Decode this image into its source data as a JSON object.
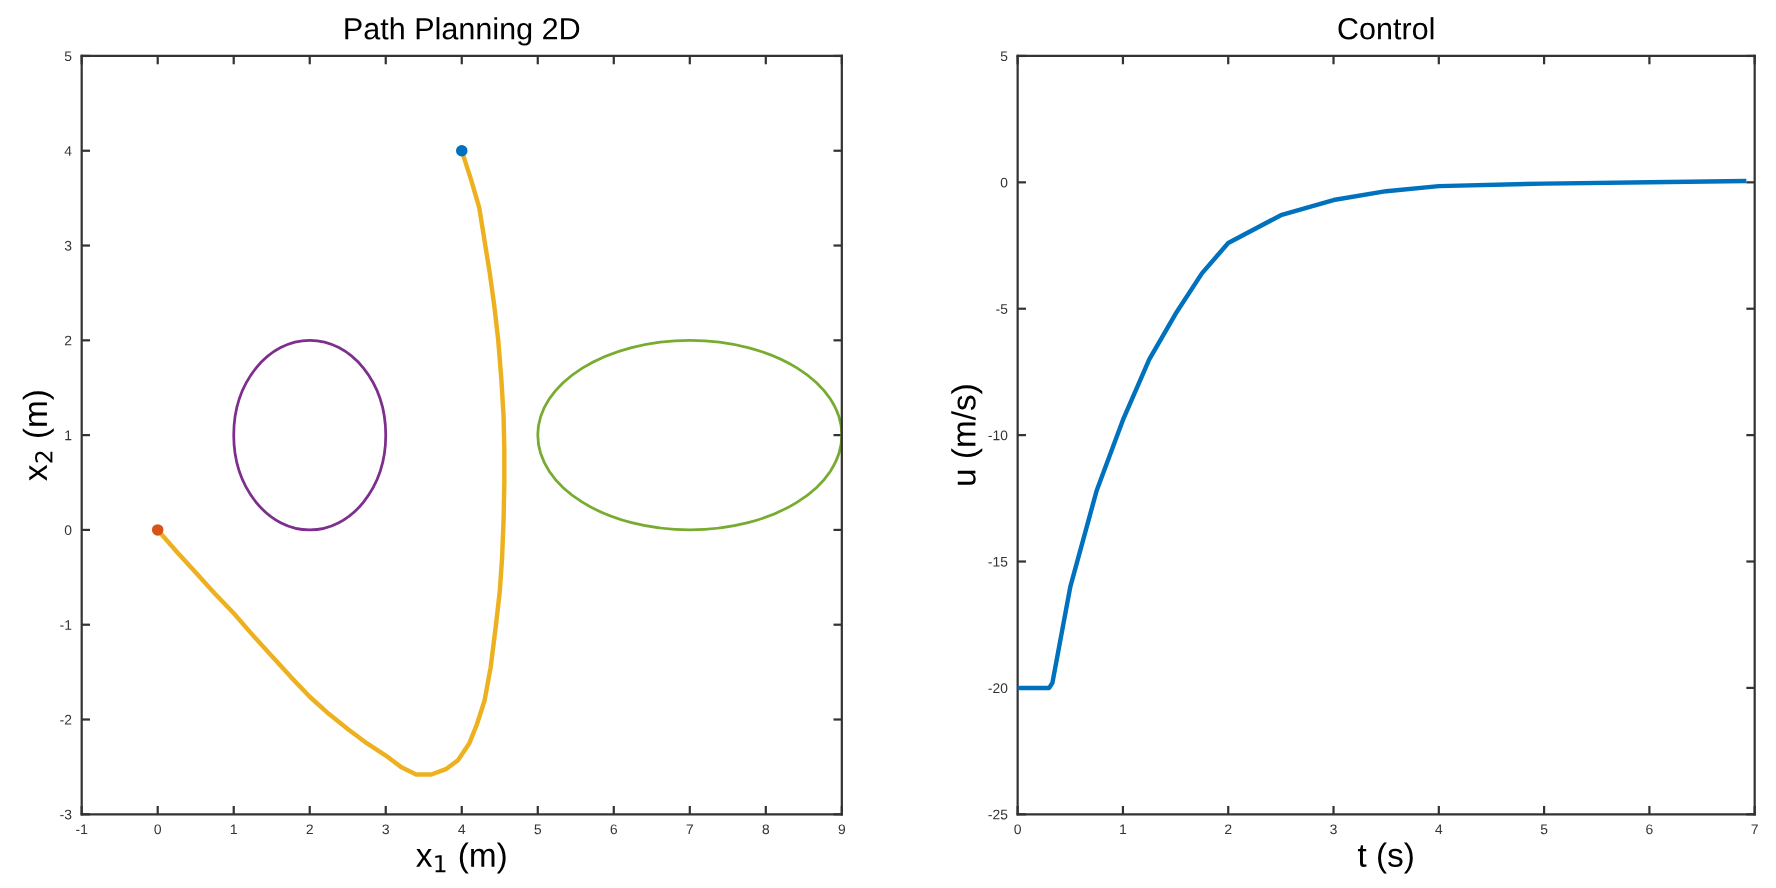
{
  "chart_data": [
    {
      "type": "line",
      "title": "Path Planning 2D",
      "xlabel": "x$_{1}$ (m)",
      "ylabel": "x$_{2}$ (m)",
      "xlim": [
        -1,
        9
      ],
      "ylim": [
        -3,
        5
      ],
      "xticks": [
        -1,
        0,
        1,
        2,
        3,
        4,
        5,
        6,
        7,
        8,
        9
      ],
      "yticks": [
        -3,
        -2,
        -1,
        0,
        1,
        2,
        3,
        4,
        5
      ],
      "grid": false,
      "series": [
        {
          "type": "line",
          "color": "#edb120",
          "x": [
            0,
            0.25,
            0.5,
            0.75,
            1,
            1.25,
            1.5,
            1.75,
            2,
            2.25,
            2.5,
            2.75,
            3,
            3.2,
            3.4,
            3.6,
            3.8,
            3.95,
            4.1,
            4.2,
            4.3,
            4.38,
            4.45,
            4.5,
            4.53,
            4.55,
            4.56,
            4.56,
            4.55,
            4.52,
            4.48,
            4.43,
            4.37,
            4.3,
            4.23,
            4.12,
            4
          ],
          "values": [
            0,
            -0.23,
            -0.45,
            -0.67,
            -0.88,
            -1.11,
            -1.33,
            -1.55,
            -1.76,
            -1.94,
            -2.1,
            -2.25,
            -2.38,
            -2.5,
            -2.58,
            -2.58,
            -2.52,
            -2.43,
            -2.25,
            -2.05,
            -1.8,
            -1.45,
            -1.0,
            -0.65,
            -0.3,
            0.1,
            0.5,
            0.85,
            1.2,
            1.6,
            2,
            2.35,
            2.7,
            3.05,
            3.4,
            3.7,
            4
          ]
        },
        {
          "type": "scatter",
          "color": "#d95319",
          "x": [
            0
          ],
          "values": [
            0
          ]
        },
        {
          "type": "scatter",
          "color": "#0072bd",
          "x": [
            4
          ],
          "values": [
            4
          ]
        }
      ]
    },
    {
      "type": "line",
      "title": "Control",
      "xlabel": "t (s)",
      "ylabel": "u (m/s)",
      "xlim": [
        0,
        7
      ],
      "ylim": [
        -25,
        5
      ],
      "xticks": [
        0,
        1,
        2,
        3,
        4,
        5,
        6,
        7
      ],
      "yticks": [
        -25,
        -20,
        -15,
        -10,
        -5,
        0,
        5
      ],
      "grid": false,
      "series": [
        {
          "type": "line",
          "color": "#0072bd",
          "x": [
            0,
            0.3,
            0.33,
            0.5,
            0.75,
            1,
            1.25,
            1.5,
            1.75,
            2,
            2.5,
            3,
            3.5,
            4,
            5,
            6,
            6.9
          ],
          "values": [
            -20,
            -20,
            -19.8,
            -16,
            -12.2,
            -9.4,
            -7,
            -5.2,
            -3.6,
            -2.4,
            -1.3,
            -0.7,
            -0.35,
            -0.15,
            -0.05,
            0,
            0.05
          ]
        }
      ]
    }
  ]
}
